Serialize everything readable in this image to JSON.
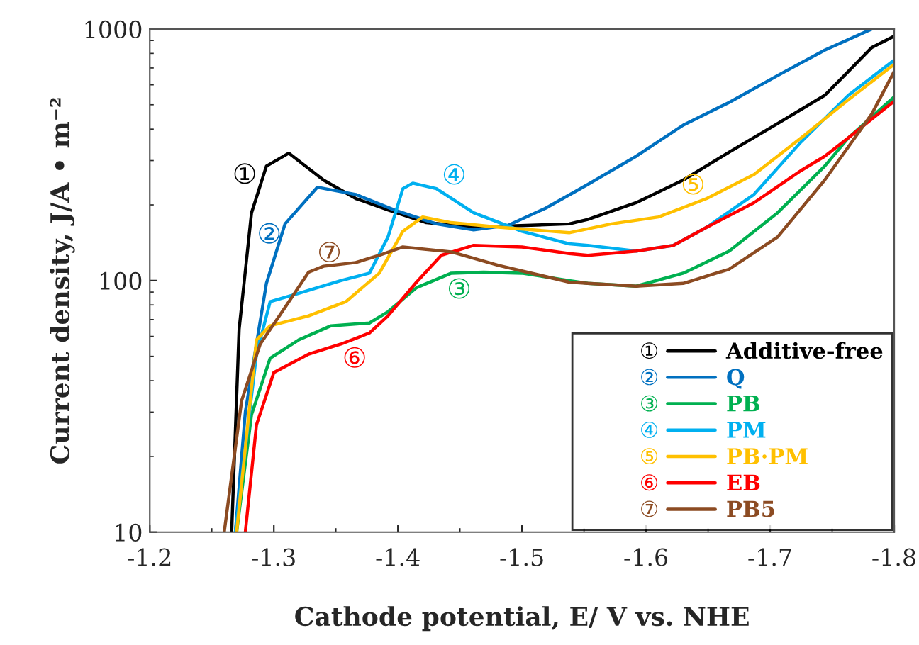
{
  "chart_data": {
    "type": "line",
    "xlabel": "Cathode potential, E/ V vs. NHE",
    "ylabel": "Current density, J/A • m⁻²",
    "log": "y",
    "xlim": [
      -1.2,
      -1.8
    ],
    "xticks": [
      -1.2,
      -1.3,
      -1.4,
      -1.5,
      -1.6,
      -1.7,
      -1.8
    ],
    "ylim": [
      10,
      1000
    ],
    "yticks": [
      10,
      100,
      1000
    ],
    "grid": false,
    "legend": "bottom right",
    "line_style": "solid",
    "marker": "none",
    "series": [
      {
        "name": "Additive-free",
        "color": "#000000",
        "x": [
          -1.266,
          -1.272,
          -1.282,
          -1.294,
          -1.312,
          -1.34,
          -1.366,
          -1.392,
          -1.423,
          -1.461,
          -1.538,
          -1.553,
          -1.592,
          -1.63,
          -1.667,
          -1.706,
          -1.744,
          -1.763,
          -1.782,
          -1.8
        ],
        "values": [
          10,
          64,
          186,
          285,
          321,
          251,
          212,
          191,
          170,
          163,
          168,
          175,
          204,
          251,
          324,
          421,
          545,
          678,
          845,
          937
        ]
      },
      {
        "name": "Q",
        "color": "#0070c0",
        "x": [
          -1.269,
          -1.277,
          -1.294,
          -1.309,
          -1.335,
          -1.366,
          -1.397,
          -1.431,
          -1.461,
          -1.489,
          -1.519,
          -1.553,
          -1.592,
          -1.63,
          -1.667,
          -1.706,
          -1.744,
          -1.782
        ],
        "values": [
          10,
          30,
          97.5,
          168,
          235,
          220,
          191,
          168,
          159,
          166,
          194,
          241,
          312,
          415,
          511,
          653,
          824,
          1000
        ]
      },
      {
        "name": "PB",
        "color": "#00b050",
        "x": [
          -1.27,
          -1.282,
          -1.297,
          -1.32,
          -1.346,
          -1.377,
          -1.392,
          -1.415,
          -1.443,
          -1.469,
          -1.5,
          -1.538,
          -1.553,
          -1.592,
          -1.63,
          -1.667,
          -1.706,
          -1.744,
          -1.763,
          -1.8
        ],
        "values": [
          10,
          29.3,
          49.1,
          58.1,
          66.1,
          67.8,
          75.2,
          93.7,
          107,
          108,
          107,
          100,
          97.5,
          95,
          107,
          131,
          186,
          285,
          369,
          537
        ]
      },
      {
        "name": "PM",
        "color": "#00b0f0",
        "x": [
          -1.269,
          -1.286,
          -1.297,
          -1.32,
          -1.354,
          -1.377,
          -1.392,
          -1.404,
          -1.412,
          -1.431,
          -1.461,
          -1.5,
          -1.538,
          -1.553,
          -1.592,
          -1.622,
          -1.649,
          -1.687,
          -1.725,
          -1.763,
          -1.8
        ],
        "values": [
          10,
          51,
          82.4,
          89,
          100,
          107,
          149,
          232,
          244,
          232,
          186,
          157,
          140,
          138,
          131,
          138,
          163,
          220,
          356,
          545,
          752
        ]
      },
      {
        "name": "PB·PM",
        "color": "#ffc000",
        "x": [
          -1.27,
          -1.286,
          -1.297,
          -1.328,
          -1.358,
          -1.385,
          -1.404,
          -1.42,
          -1.443,
          -1.481,
          -1.538,
          -1.572,
          -1.61,
          -1.649,
          -1.687,
          -1.725,
          -1.763,
          -1.8
        ],
        "values": [
          10,
          58.1,
          66.1,
          72.4,
          82.4,
          107,
          157,
          179,
          170,
          163,
          155,
          168,
          179,
          212,
          264,
          369,
          523,
          724
        ]
      },
      {
        "name": "EB",
        "color": "#ff0000",
        "x": [
          -1.277,
          -1.286,
          -1.3,
          -1.328,
          -1.354,
          -1.377,
          -1.392,
          -1.415,
          -1.435,
          -1.461,
          -1.5,
          -1.538,
          -1.553,
          -1.592,
          -1.622,
          -1.649,
          -1.687,
          -1.725,
          -1.744,
          -1.763,
          -1.8
        ],
        "values": [
          10,
          26.7,
          43.1,
          51,
          55.9,
          61.9,
          72.4,
          98.6,
          126,
          138,
          136,
          128,
          126,
          131,
          138,
          163,
          204,
          274,
          312,
          369,
          517
        ]
      },
      {
        "name": "PB5",
        "color": "#8c4b22",
        "x": [
          -1.26,
          -1.274,
          -1.289,
          -1.309,
          -1.328,
          -1.34,
          -1.366,
          -1.385,
          -1.404,
          -1.443,
          -1.481,
          -1.538,
          -1.553,
          -1.592,
          -1.63,
          -1.667,
          -1.706,
          -1.744,
          -1.782,
          -1.8
        ],
        "values": [
          10,
          33.3,
          55.9,
          78.2,
          108,
          114,
          118,
          126,
          136,
          130,
          115,
          98.6,
          97.5,
          95,
          97.5,
          111,
          149,
          251,
          460,
          678
        ]
      }
    ],
    "annotations": [
      {
        "text": "①",
        "x": -1.294,
        "y": 285
      },
      {
        "text": "②",
        "x": -1.309,
        "y": 168
      },
      {
        "text": "③",
        "x": -1.443,
        "y": 107
      },
      {
        "text": "④",
        "x": -1.431,
        "y": 232
      },
      {
        "text": "⑤",
        "x": -1.649,
        "y": 212
      },
      {
        "text": "⑥",
        "x": -1.354,
        "y": 55.9
      },
      {
        "text": "⑦",
        "x": -1.34,
        "y": 114
      }
    ]
  }
}
